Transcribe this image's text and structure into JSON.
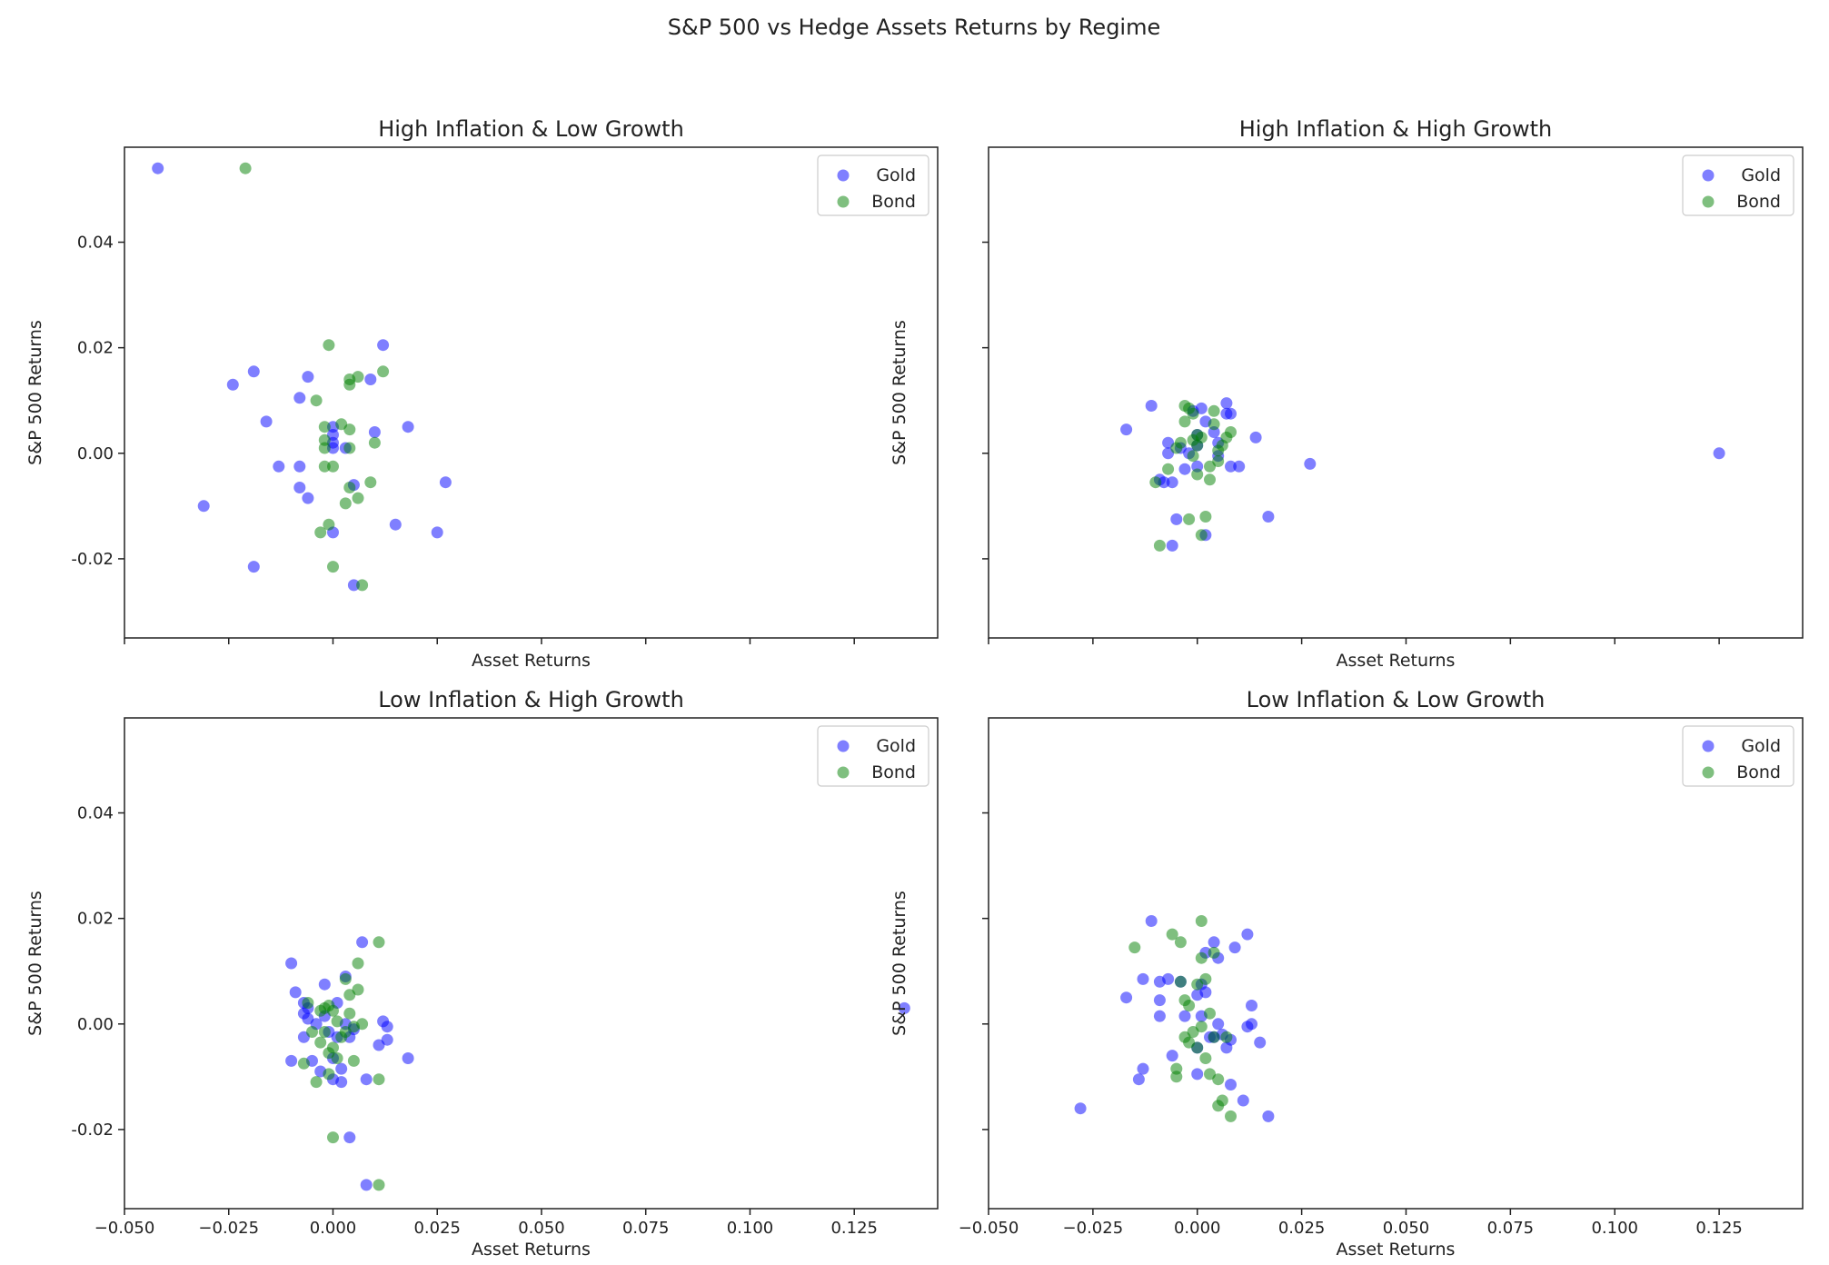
{
  "figure_title": "S&P 500 vs Hedge Assets Returns by Regime",
  "colors": {
    "Gold": "#0000ff",
    "Bond": "#008000"
  },
  "chart_data": [
    {
      "type": "scatter",
      "title": "High Inflation & Low Growth",
      "xlabel": "Asset Returns",
      "ylabel": "S&P 500 Returns",
      "xlim": [
        -0.05,
        0.145
      ],
      "ylim": [
        -0.035,
        0.058
      ],
      "xticks": [],
      "xticks_shown": false,
      "yticks": [
        "-0.02",
        "0.00",
        "0.02",
        "0.04"
      ],
      "grid": false,
      "legend": "top-right",
      "series": [
        {
          "name": "Gold",
          "color": "#0000ff",
          "points": [
            [
              -0.042,
              0.054
            ],
            [
              -0.031,
              -0.01
            ],
            [
              -0.024,
              0.013
            ],
            [
              -0.019,
              0.0155
            ],
            [
              -0.019,
              -0.0215
            ],
            [
              -0.016,
              0.006
            ],
            [
              -0.013,
              -0.0025
            ],
            [
              -0.008,
              0.0105
            ],
            [
              -0.008,
              -0.0025
            ],
            [
              -0.008,
              -0.0065
            ],
            [
              -0.006,
              0.0145
            ],
            [
              -0.006,
              -0.0085
            ],
            [
              0.0,
              0.005
            ],
            [
              0.0,
              0.0035
            ],
            [
              0.0,
              0.002
            ],
            [
              0.0,
              0.001
            ],
            [
              0.0,
              -0.015
            ],
            [
              0.003,
              0.001
            ],
            [
              0.005,
              -0.006
            ],
            [
              0.005,
              -0.025
            ],
            [
              0.009,
              0.014
            ],
            [
              0.01,
              0.004
            ],
            [
              0.012,
              0.0205
            ],
            [
              0.015,
              -0.0135
            ],
            [
              0.018,
              0.005
            ],
            [
              0.025,
              -0.015
            ],
            [
              0.027,
              -0.0055
            ]
          ]
        },
        {
          "name": "Bond",
          "color": "#008000",
          "points": [
            [
              -0.021,
              0.054
            ],
            [
              -0.004,
              0.01
            ],
            [
              -0.003,
              -0.015
            ],
            [
              -0.002,
              0.005
            ],
            [
              -0.002,
              0.0025
            ],
            [
              -0.002,
              0.001
            ],
            [
              -0.002,
              -0.0025
            ],
            [
              -0.001,
              0.0205
            ],
            [
              -0.001,
              -0.0135
            ],
            [
              0.0,
              -0.0025
            ],
            [
              0.0,
              -0.0215
            ],
            [
              0.002,
              0.0055
            ],
            [
              0.003,
              -0.0095
            ],
            [
              0.004,
              0.014
            ],
            [
              0.004,
              0.013
            ],
            [
              0.004,
              0.0045
            ],
            [
              0.004,
              0.001
            ],
            [
              0.004,
              -0.0065
            ],
            [
              0.006,
              0.0145
            ],
            [
              0.006,
              -0.0085
            ],
            [
              0.007,
              -0.025
            ],
            [
              0.009,
              -0.0055
            ],
            [
              0.01,
              0.002
            ],
            [
              0.012,
              0.0155
            ]
          ]
        }
      ]
    },
    {
      "type": "scatter",
      "title": "High Inflation & High Growth",
      "xlabel": "Asset Returns",
      "ylabel": "S&P 500 Returns",
      "xlim": [
        -0.05,
        0.145
      ],
      "ylim": [
        -0.035,
        0.058
      ],
      "xticks": [],
      "xticks_shown": false,
      "yticks": [],
      "yticks_shown": false,
      "grid": false,
      "legend": "top-right",
      "series": [
        {
          "name": "Gold",
          "color": "#0000ff",
          "points": [
            [
              -0.017,
              0.0045
            ],
            [
              -0.011,
              0.009
            ],
            [
              -0.009,
              -0.005
            ],
            [
              -0.008,
              -0.0055
            ],
            [
              -0.007,
              0.002
            ],
            [
              -0.007,
              0.0
            ],
            [
              -0.006,
              -0.0055
            ],
            [
              -0.006,
              -0.0175
            ],
            [
              -0.005,
              -0.0125
            ],
            [
              -0.004,
              0.001
            ],
            [
              -0.003,
              -0.003
            ],
            [
              -0.002,
              0.0
            ],
            [
              -0.001,
              0.008
            ],
            [
              0.0,
              0.0035
            ],
            [
              0.0,
              0.0015
            ],
            [
              0.0,
              -0.0025
            ],
            [
              0.001,
              0.0085
            ],
            [
              0.002,
              0.006
            ],
            [
              0.002,
              -0.0155
            ],
            [
              0.004,
              0.004
            ],
            [
              0.005,
              0.002
            ],
            [
              0.005,
              -0.0005
            ],
            [
              0.007,
              0.0095
            ],
            [
              0.007,
              0.0075
            ],
            [
              0.008,
              0.0075
            ],
            [
              0.008,
              -0.0025
            ],
            [
              0.01,
              -0.0025
            ],
            [
              0.014,
              0.003
            ],
            [
              0.017,
              -0.012
            ],
            [
              0.027,
              -0.002
            ],
            [
              0.125,
              0.0
            ]
          ]
        },
        {
          "name": "Bond",
          "color": "#008000",
          "points": [
            [
              -0.01,
              -0.0055
            ],
            [
              -0.009,
              -0.0175
            ],
            [
              -0.007,
              -0.003
            ],
            [
              -0.005,
              0.001
            ],
            [
              -0.004,
              0.002
            ],
            [
              -0.003,
              0.009
            ],
            [
              -0.003,
              0.006
            ],
            [
              -0.002,
              0.0085
            ],
            [
              -0.002,
              -0.0125
            ],
            [
              -0.001,
              0.0075
            ],
            [
              -0.001,
              0.0025
            ],
            [
              -0.001,
              -0.0005
            ],
            [
              0.0,
              0.0035
            ],
            [
              0.0,
              0.0015
            ],
            [
              0.0,
              -0.004
            ],
            [
              0.001,
              0.003
            ],
            [
              0.001,
              -0.0155
            ],
            [
              0.002,
              -0.012
            ],
            [
              0.003,
              -0.0025
            ],
            [
              0.003,
              -0.005
            ],
            [
              0.004,
              0.008
            ],
            [
              0.004,
              0.0055
            ],
            [
              0.005,
              0.0005
            ],
            [
              0.005,
              -0.0015
            ],
            [
              0.006,
              0.0015
            ],
            [
              0.007,
              0.003
            ],
            [
              0.008,
              0.004
            ]
          ]
        }
      ]
    },
    {
      "type": "scatter",
      "title": "Low Inflation & High Growth",
      "xlabel": "Asset Returns",
      "ylabel": "S&P 500 Returns",
      "xlim": [
        -0.05,
        0.145
      ],
      "ylim": [
        -0.035,
        0.058
      ],
      "xticks": [
        "−0.050",
        "−0.025",
        "0.000",
        "0.025",
        "0.050",
        "0.075",
        "0.100",
        "0.125"
      ],
      "yticks": [
        "-0.02",
        "0.00",
        "0.02",
        "0.04"
      ],
      "grid": false,
      "legend": "top-right",
      "series": [
        {
          "name": "Gold",
          "color": "#0000ff",
          "points": [
            [
              -0.01,
              0.0115
            ],
            [
              -0.01,
              -0.007
            ],
            [
              -0.009,
              0.006
            ],
            [
              -0.007,
              0.004
            ],
            [
              -0.007,
              0.002
            ],
            [
              -0.007,
              -0.0025
            ],
            [
              -0.006,
              0.003
            ],
            [
              -0.006,
              0.001
            ],
            [
              -0.005,
              -0.007
            ],
            [
              -0.004,
              0.0
            ],
            [
              -0.003,
              -0.009
            ],
            [
              -0.002,
              0.0075
            ],
            [
              -0.002,
              0.0015
            ],
            [
              -0.001,
              -0.0015
            ],
            [
              0.0,
              -0.0065
            ],
            [
              0.0,
              -0.0105
            ],
            [
              0.001,
              0.004
            ],
            [
              0.001,
              -0.0025
            ],
            [
              0.002,
              -0.0085
            ],
            [
              0.002,
              -0.011
            ],
            [
              0.003,
              0.009
            ],
            [
              0.003,
              0.0
            ],
            [
              0.004,
              -0.0025
            ],
            [
              0.004,
              -0.0215
            ],
            [
              0.005,
              -0.001
            ],
            [
              0.007,
              0.0155
            ],
            [
              0.008,
              -0.0105
            ],
            [
              0.008,
              -0.0305
            ],
            [
              0.011,
              -0.004
            ],
            [
              0.012,
              0.0005
            ],
            [
              0.013,
              -0.003
            ],
            [
              0.013,
              -0.0005
            ],
            [
              0.018,
              -0.0065
            ],
            [
              0.137,
              0.003
            ]
          ]
        },
        {
          "name": "Bond",
          "color": "#008000",
          "points": [
            [
              -0.007,
              -0.0075
            ],
            [
              -0.006,
              0.004
            ],
            [
              -0.005,
              -0.0015
            ],
            [
              -0.004,
              -0.011
            ],
            [
              -0.003,
              0.0025
            ],
            [
              -0.003,
              -0.0035
            ],
            [
              -0.002,
              0.003
            ],
            [
              -0.002,
              -0.0015
            ],
            [
              -0.001,
              -0.0055
            ],
            [
              -0.001,
              0.0035
            ],
            [
              -0.001,
              -0.0095
            ],
            [
              0.0,
              0.0025
            ],
            [
              0.0,
              -0.0045
            ],
            [
              0.0,
              -0.0215
            ],
            [
              0.001,
              0.0005
            ],
            [
              0.001,
              -0.0065
            ],
            [
              0.002,
              -0.0025
            ],
            [
              0.003,
              0.0085
            ],
            [
              0.003,
              -0.0015
            ],
            [
              0.004,
              0.0055
            ],
            [
              0.004,
              0.002
            ],
            [
              0.005,
              -0.0005
            ],
            [
              0.005,
              -0.007
            ],
            [
              0.006,
              0.0115
            ],
            [
              0.006,
              0.0065
            ],
            [
              0.007,
              0.0
            ],
            [
              0.011,
              0.0155
            ],
            [
              0.011,
              -0.0105
            ],
            [
              0.011,
              -0.0305
            ]
          ]
        }
      ]
    },
    {
      "type": "scatter",
      "title": "Low Inflation & Low Growth",
      "xlabel": "Asset Returns",
      "ylabel": "S&P 500 Returns",
      "xlim": [
        -0.05,
        0.145
      ],
      "ylim": [
        -0.035,
        0.058
      ],
      "xticks": [
        "−0.050",
        "−0.025",
        "0.000",
        "0.025",
        "0.050",
        "0.075",
        "0.100",
        "0.125"
      ],
      "yticks": [],
      "yticks_shown": false,
      "grid": false,
      "legend": "top-right",
      "series": [
        {
          "name": "Gold",
          "color": "#0000ff",
          "points": [
            [
              -0.028,
              -0.016
            ],
            [
              -0.017,
              0.005
            ],
            [
              -0.014,
              -0.0105
            ],
            [
              -0.013,
              0.0085
            ],
            [
              -0.013,
              -0.0085
            ],
            [
              -0.011,
              0.0195
            ],
            [
              -0.009,
              0.008
            ],
            [
              -0.009,
              0.0045
            ],
            [
              -0.009,
              0.0015
            ],
            [
              -0.007,
              0.0085
            ],
            [
              -0.006,
              -0.006
            ],
            [
              -0.004,
              0.008
            ],
            [
              -0.003,
              0.0015
            ],
            [
              0.0,
              0.0055
            ],
            [
              0.0,
              -0.0045
            ],
            [
              0.0,
              -0.0095
            ],
            [
              0.001,
              0.0075
            ],
            [
              0.001,
              0.0015
            ],
            [
              0.002,
              0.0135
            ],
            [
              0.002,
              0.006
            ],
            [
              0.003,
              -0.0025
            ],
            [
              0.004,
              0.0155
            ],
            [
              0.004,
              -0.0025
            ],
            [
              0.005,
              0.0125
            ],
            [
              0.005,
              0.0
            ],
            [
              0.006,
              -0.002
            ],
            [
              0.007,
              -0.0045
            ],
            [
              0.008,
              -0.003
            ],
            [
              0.008,
              -0.0115
            ],
            [
              0.009,
              0.0145
            ],
            [
              0.011,
              -0.0145
            ],
            [
              0.012,
              0.017
            ],
            [
              0.012,
              -0.0005
            ],
            [
              0.013,
              0.0035
            ],
            [
              0.013,
              0.0
            ],
            [
              0.015,
              -0.0035
            ],
            [
              0.017,
              -0.0175
            ]
          ]
        },
        {
          "name": "Bond",
          "color": "#008000",
          "points": [
            [
              -0.015,
              0.0145
            ],
            [
              -0.006,
              0.017
            ],
            [
              -0.005,
              -0.0085
            ],
            [
              -0.005,
              -0.01
            ],
            [
              -0.004,
              0.0155
            ],
            [
              -0.004,
              0.008
            ],
            [
              -0.003,
              0.0045
            ],
            [
              -0.003,
              -0.0025
            ],
            [
              -0.002,
              0.0035
            ],
            [
              -0.002,
              -0.0035
            ],
            [
              -0.001,
              -0.0015
            ],
            [
              0.0,
              0.0075
            ],
            [
              0.0,
              -0.0045
            ],
            [
              0.001,
              0.0195
            ],
            [
              0.001,
              0.0125
            ],
            [
              0.001,
              -0.0005
            ],
            [
              0.002,
              0.0085
            ],
            [
              0.002,
              -0.0065
            ],
            [
              0.003,
              0.002
            ],
            [
              0.003,
              -0.0095
            ],
            [
              0.004,
              0.0135
            ],
            [
              0.004,
              -0.0025
            ],
            [
              0.005,
              -0.0105
            ],
            [
              0.005,
              -0.0155
            ],
            [
              0.006,
              -0.0145
            ],
            [
              0.007,
              -0.0025
            ],
            [
              0.008,
              -0.0175
            ]
          ]
        }
      ]
    }
  ]
}
